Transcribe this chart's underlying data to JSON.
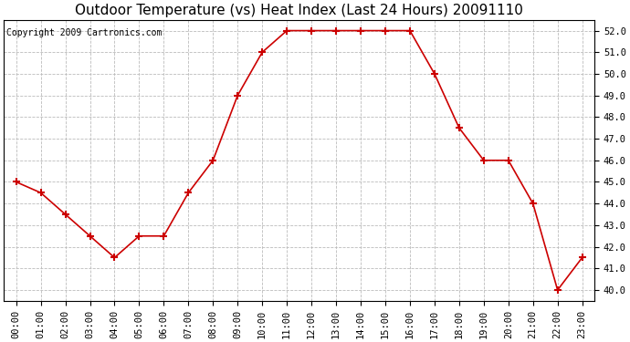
{
  "title": "Outdoor Temperature (vs) Heat Index (Last 24 Hours) 20091110",
  "copyright_text": "Copyright 2009 Cartronics.com",
  "hours": [
    "00:00",
    "01:00",
    "02:00",
    "03:00",
    "04:00",
    "05:00",
    "06:00",
    "07:00",
    "08:00",
    "09:00",
    "10:00",
    "11:00",
    "12:00",
    "13:00",
    "14:00",
    "15:00",
    "16:00",
    "17:00",
    "18:00",
    "19:00",
    "20:00",
    "21:00",
    "22:00",
    "23:00"
  ],
  "values": [
    45.0,
    44.5,
    43.5,
    42.5,
    41.5,
    42.5,
    42.5,
    44.5,
    46.0,
    49.0,
    51.0,
    52.0,
    52.0,
    52.0,
    52.0,
    52.0,
    52.0,
    50.0,
    47.5,
    46.0,
    46.0,
    44.0,
    40.0,
    41.5
  ],
  "line_color": "#cc0000",
  "marker": "+",
  "marker_size": 6,
  "marker_linewidth": 1.5,
  "line_width": 1.2,
  "ylim_min": 39.5,
  "ylim_max": 52.5,
  "yticks": [
    40.0,
    41.0,
    42.0,
    43.0,
    44.0,
    45.0,
    46.0,
    47.0,
    48.0,
    49.0,
    50.0,
    51.0,
    52.0
  ],
  "background_color": "#ffffff",
  "grid_color": "#bbbbbb",
  "title_fontsize": 11,
  "copyright_fontsize": 7,
  "tick_fontsize": 7.5
}
